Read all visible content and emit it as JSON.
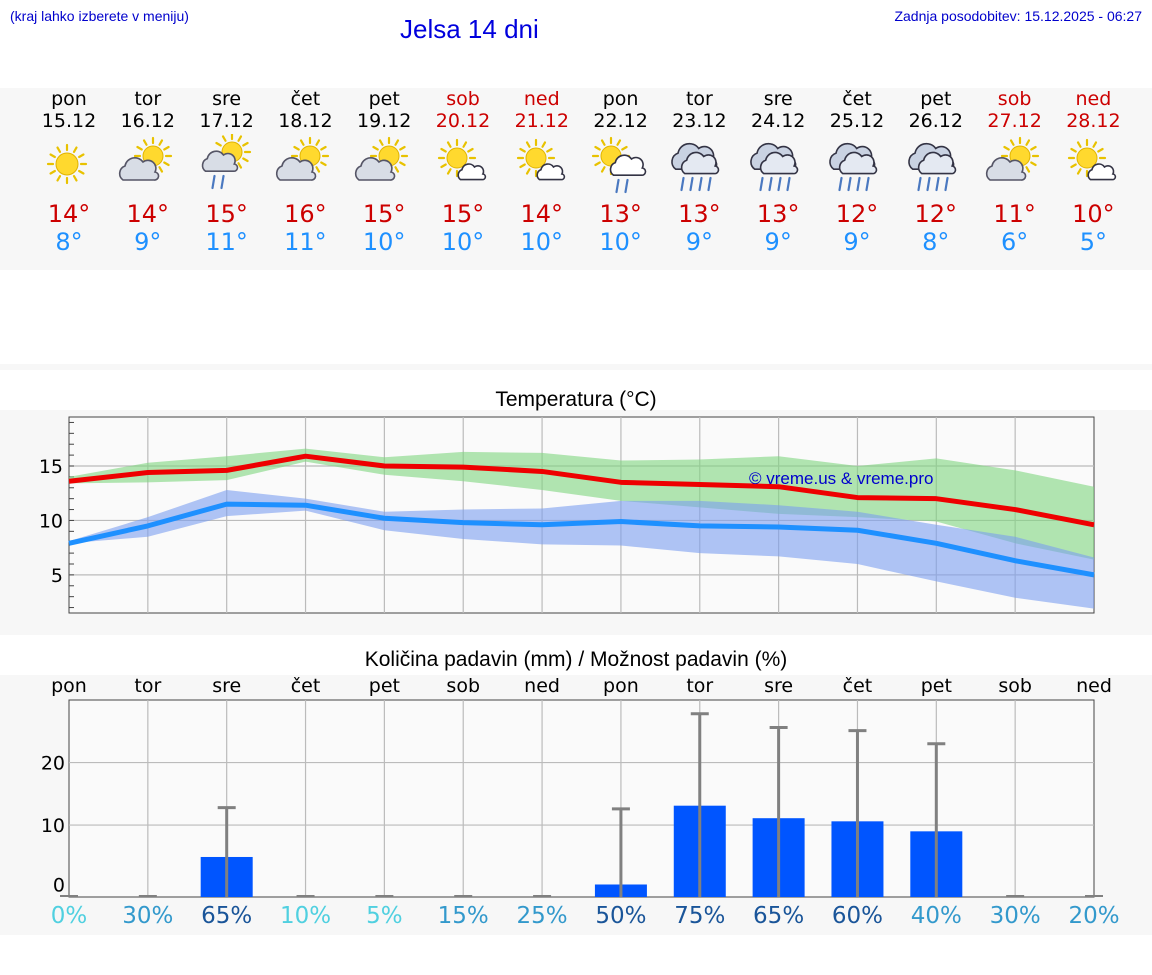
{
  "header": {
    "note": "(kraj lahko izberete v meniju)",
    "title": "Jelsa 14 dni",
    "updated": "Zadnja posodobitev: 15.12.2025 - 06:27"
  },
  "days": [
    {
      "name": "pon",
      "date": "15.12",
      "weekend": false,
      "icon": "sun-icon",
      "tmax": "14°",
      "tmin": "8°"
    },
    {
      "name": "tor",
      "date": "16.12",
      "weekend": false,
      "icon": "partly-cloudy-icon",
      "tmax": "14°",
      "tmin": "9°"
    },
    {
      "name": "sre",
      "date": "17.12",
      "weekend": false,
      "icon": "sun-shower-icon",
      "tmax": "15°",
      "tmin": "11°"
    },
    {
      "name": "čet",
      "date": "18.12",
      "weekend": false,
      "icon": "partly-cloudy-icon",
      "tmax": "16°",
      "tmin": "11°"
    },
    {
      "name": "pet",
      "date": "19.12",
      "weekend": false,
      "icon": "partly-cloudy-icon",
      "tmax": "15°",
      "tmin": "10°"
    },
    {
      "name": "sob",
      "date": "20.12",
      "weekend": true,
      "icon": "sun-small-cloud-icon",
      "tmax": "15°",
      "tmin": "10°"
    },
    {
      "name": "ned",
      "date": "21.12",
      "weekend": true,
      "icon": "sun-small-cloud-icon",
      "tmax": "14°",
      "tmin": "10°"
    },
    {
      "name": "pon",
      "date": "22.12",
      "weekend": false,
      "icon": "sun-cloud-rain-icon",
      "tmax": "13°",
      "tmin": "10°"
    },
    {
      "name": "tor",
      "date": "23.12",
      "weekend": false,
      "icon": "rain-cloud-icon",
      "tmax": "13°",
      "tmin": "9°"
    },
    {
      "name": "sre",
      "date": "24.12",
      "weekend": false,
      "icon": "rain-cloud-icon",
      "tmax": "13°",
      "tmin": "9°"
    },
    {
      "name": "čet",
      "date": "25.12",
      "weekend": false,
      "icon": "rain-cloud-icon",
      "tmax": "12°",
      "tmin": "9°"
    },
    {
      "name": "pet",
      "date": "26.12",
      "weekend": false,
      "icon": "rain-cloud-icon",
      "tmax": "12°",
      "tmin": "8°"
    },
    {
      "name": "sob",
      "date": "27.12",
      "weekend": true,
      "icon": "partly-cloudy-icon",
      "tmax": "11°",
      "tmin": "6°"
    },
    {
      "name": "ned",
      "date": "28.12",
      "weekend": true,
      "icon": "sun-small-cloud-icon",
      "tmax": "10°",
      "tmin": "5°"
    }
  ],
  "colors": {
    "max": "#ee0000",
    "min": "#1e90ff",
    "maxBand": "#7ed67e",
    "minBand": "#7b9ff0",
    "bar": "#0055ff",
    "whisker": "#808080"
  },
  "chart_data": [
    {
      "type": "line",
      "title": "Temperatura (°C)",
      "watermark": "© vreme.us & vreme.pro",
      "ylim": [
        1.5,
        19.5
      ],
      "yticks": [
        5,
        10,
        15
      ],
      "x": [
        0,
        1,
        2,
        3,
        4,
        5,
        6,
        7,
        8,
        9,
        10,
        11,
        12,
        13
      ],
      "series": [
        {
          "name": "max",
          "values": [
            13.6,
            14.4,
            14.6,
            15.9,
            15.0,
            14.9,
            14.5,
            13.5,
            13.3,
            13.1,
            12.1,
            12.0,
            11.0,
            9.6
          ]
        },
        {
          "name": "min",
          "values": [
            7.9,
            9.5,
            11.5,
            11.4,
            10.2,
            9.8,
            9.6,
            9.9,
            9.5,
            9.4,
            9.1,
            7.9,
            6.3,
            5.0
          ]
        }
      ],
      "bands": [
        {
          "name": "max-range",
          "low": [
            13.4,
            13.5,
            13.7,
            15.4,
            14.2,
            13.6,
            12.8,
            11.8,
            11.2,
            10.6,
            10.3,
            9.9,
            7.9,
            6.4
          ],
          "high": [
            14.0,
            15.3,
            15.9,
            16.6,
            15.8,
            16.3,
            16.2,
            15.5,
            15.6,
            15.9,
            15.0,
            15.7,
            14.6,
            13.1
          ]
        },
        {
          "name": "min-range",
          "low": [
            7.9,
            8.5,
            10.4,
            10.9,
            9.1,
            8.3,
            7.8,
            7.7,
            7.0,
            6.7,
            6.0,
            4.4,
            2.9,
            1.9
          ],
          "high": [
            8.1,
            10.3,
            12.8,
            12.0,
            10.8,
            11.0,
            11.1,
            11.8,
            11.8,
            11.4,
            10.8,
            9.6,
            8.5,
            6.6
          ]
        }
      ]
    },
    {
      "type": "bar",
      "title": "Količina padavin (mm) / Možnost padavin (%)",
      "ylim": [
        -1.5,
        30
      ],
      "yticks": [
        0,
        10,
        20
      ],
      "categories": [
        "pon",
        "tor",
        "sre",
        "čet",
        "pet",
        "sob",
        "ned",
        "pon",
        "tor",
        "sre",
        "čet",
        "pet",
        "sob",
        "ned"
      ],
      "values": [
        0,
        0,
        4.9,
        0,
        0,
        0,
        0,
        0.5,
        13.1,
        11.1,
        10.6,
        9.0,
        0,
        0
      ],
      "error_high": [
        0,
        0,
        12.8,
        0,
        0,
        0,
        0,
        12.6,
        27.8,
        25.6,
        25.1,
        23.0,
        0,
        0
      ],
      "probabilities": [
        "0%",
        "30%",
        "65%",
        "10%",
        "5%",
        "15%",
        "25%",
        "50%",
        "75%",
        "65%",
        "60%",
        "40%",
        "30%",
        "20%"
      ],
      "probability_colors": [
        "#50d0e0",
        "#3399cc",
        "#1a5599",
        "#50d0e0",
        "#50d0e0",
        "#3399cc",
        "#3399cc",
        "#1a5599",
        "#1a5599",
        "#1a5599",
        "#1a5599",
        "#3399cc",
        "#3399cc",
        "#3399cc"
      ]
    }
  ]
}
